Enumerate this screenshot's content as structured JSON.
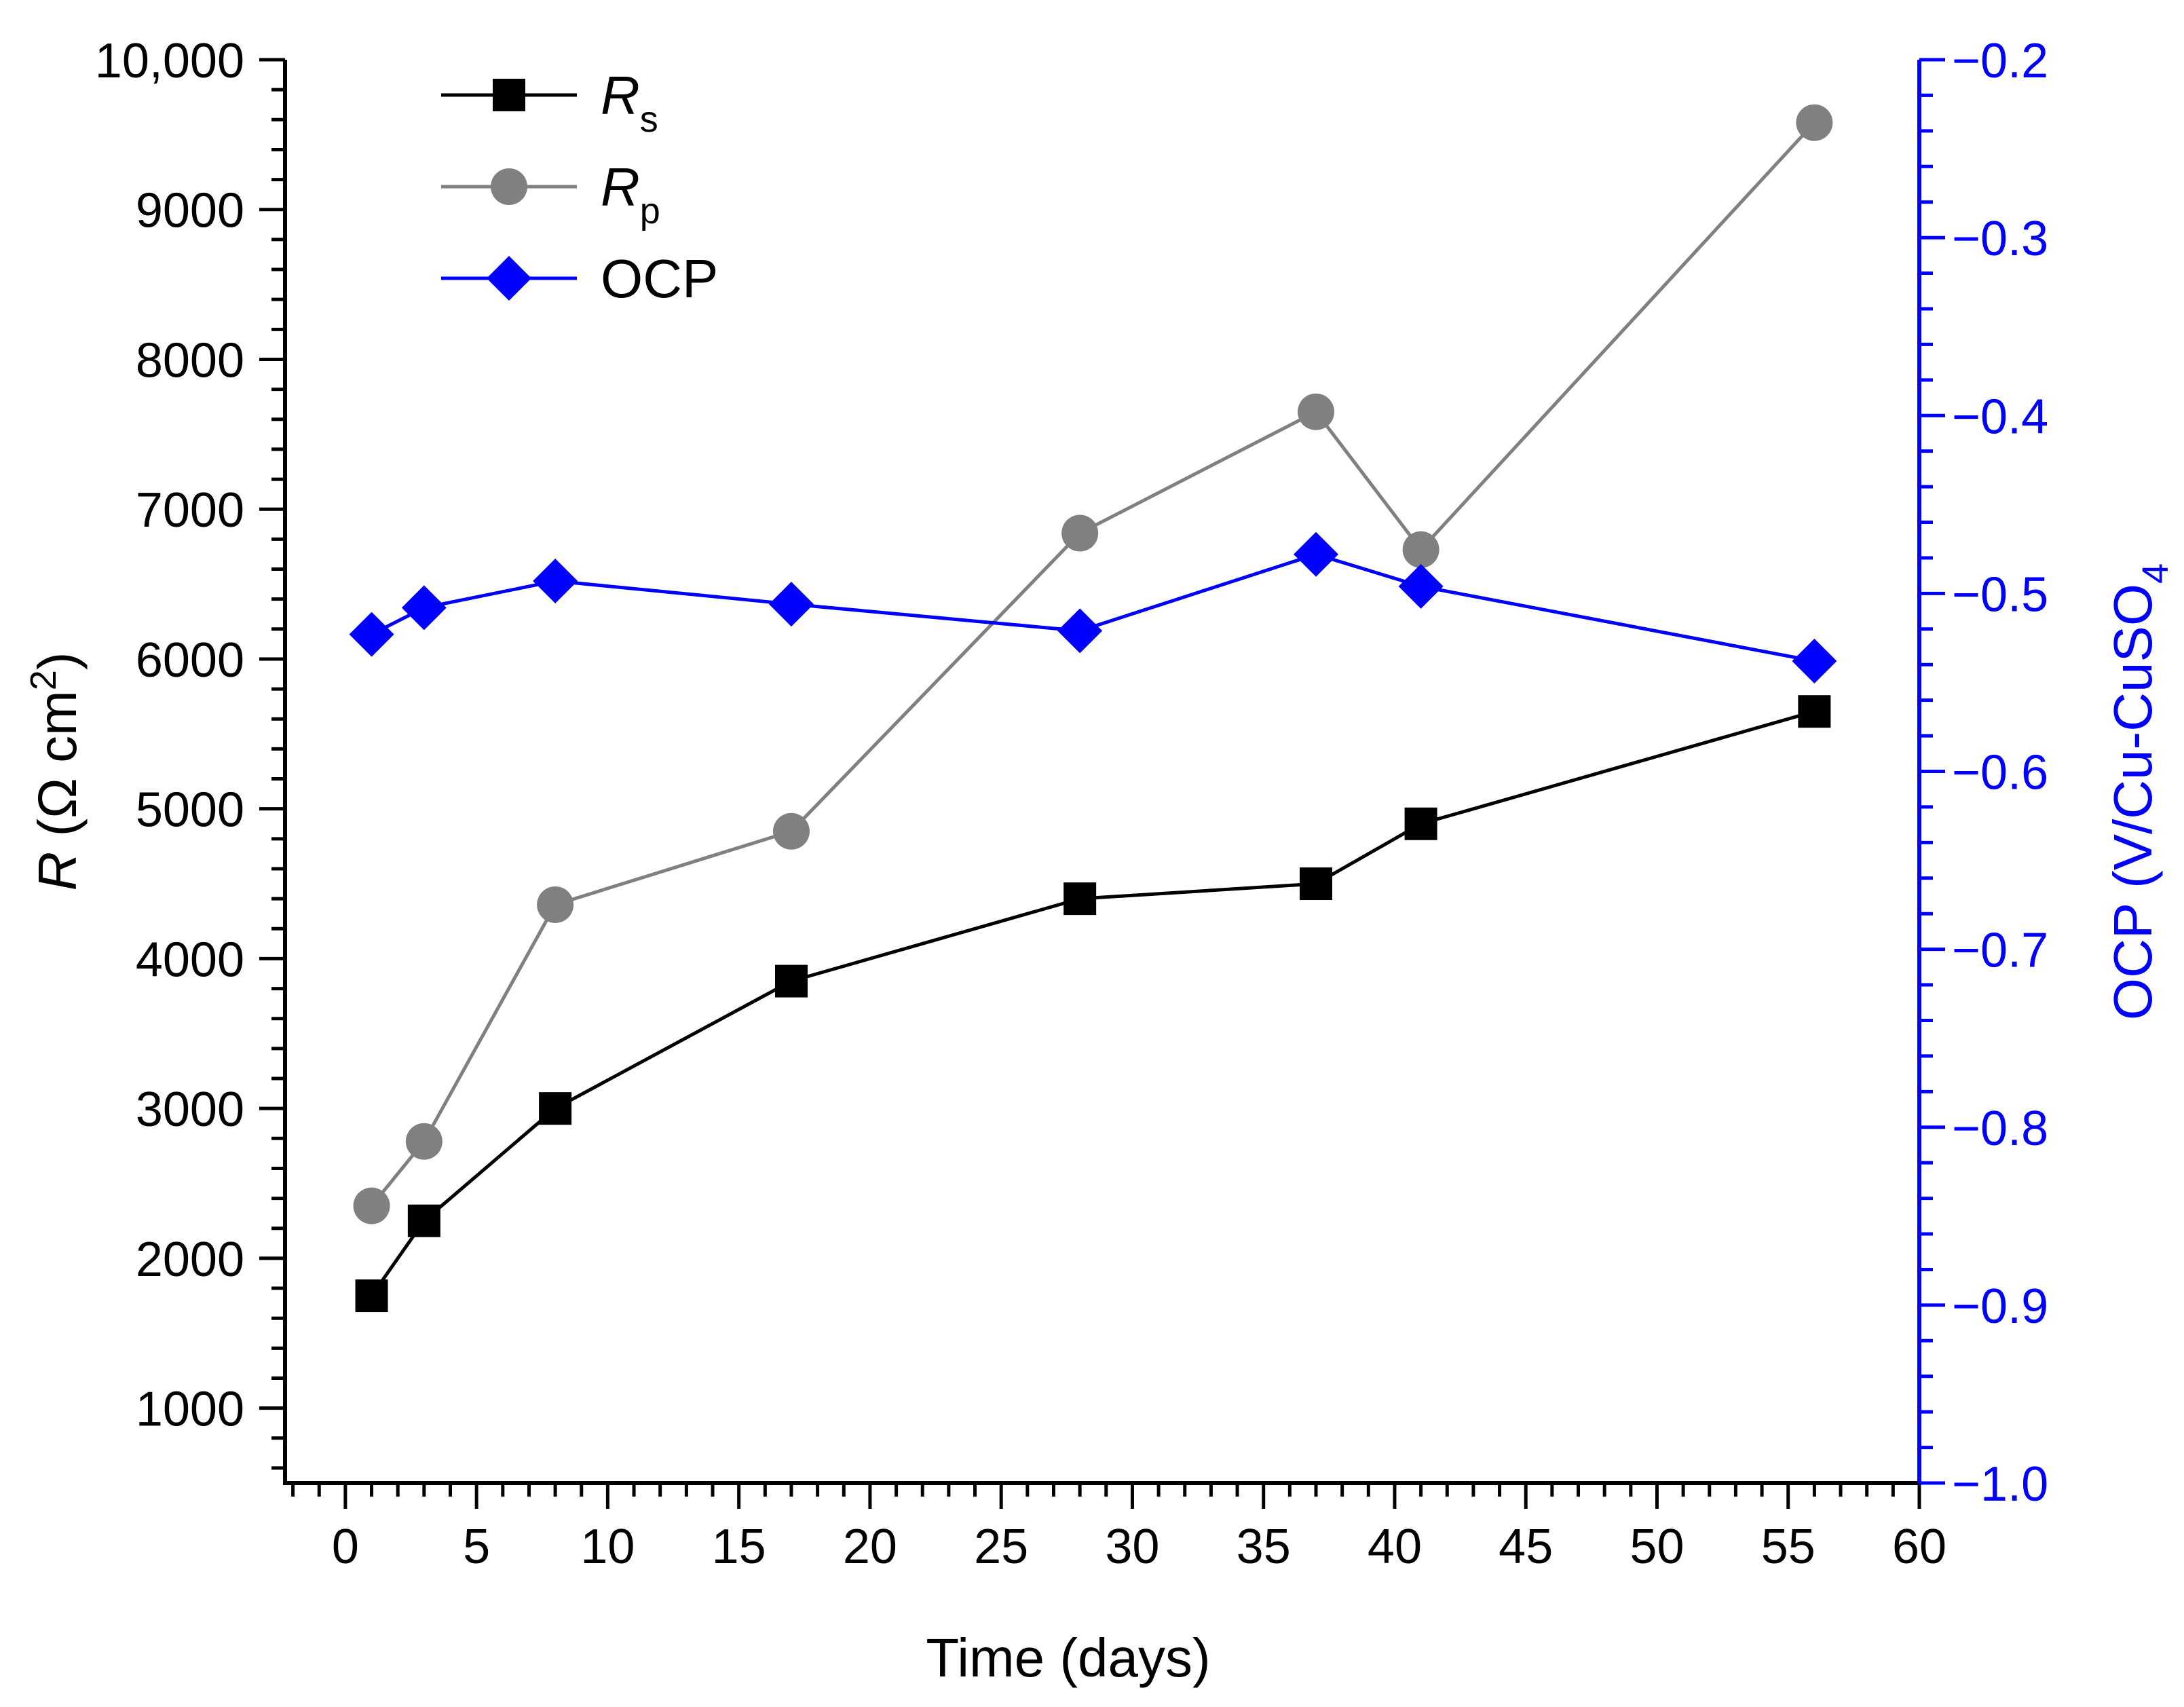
{
  "chart_data": {
    "type": "line",
    "x": [
      1,
      3,
      8,
      17,
      28,
      37,
      41,
      56
    ],
    "xlabel": "Time (days)",
    "xlim": [
      -2.3,
      60
    ],
    "xticks": [
      0,
      5,
      10,
      15,
      20,
      25,
      30,
      35,
      40,
      45,
      50,
      55,
      60
    ],
    "xtick_labels": [
      "0",
      "5",
      "10",
      "15",
      "20",
      "25",
      "30",
      "35",
      "40",
      "45",
      "50",
      "55",
      "60"
    ],
    "ylabel_left": {
      "italic": "R",
      "units_prefix": " (Ω cm",
      "units_sup": "2",
      "units_suffix": ")"
    },
    "ylim_left": [
      500,
      10000
    ],
    "yticks_left": [
      1000,
      2000,
      3000,
      4000,
      5000,
      6000,
      7000,
      8000,
      9000,
      10000
    ],
    "ytick_labels_left": [
      "1000",
      "2000",
      "3000",
      "4000",
      "5000",
      "6000",
      "7000",
      "8000",
      "9000",
      "10,000"
    ],
    "ylabel_right": {
      "prefix": "OCP (V/Cu-CuSO",
      "sub": "4",
      "suffix": ""
    },
    "ylim_right": [
      -1.0,
      -0.2
    ],
    "yticks_right": [
      -1.0,
      -0.9,
      -0.8,
      -0.7,
      -0.6,
      -0.5,
      -0.4,
      -0.3,
      -0.2
    ],
    "ytick_labels_right": [
      "−1.0",
      "−0.9",
      "−0.8",
      "−0.7",
      "−0.6",
      "−0.5",
      "−0.4",
      "−0.3",
      "−0.2"
    ],
    "legend_position": "top-left",
    "series": [
      {
        "name": "Rs",
        "legend_main": "R",
        "legend_sub": "s",
        "axis": "left",
        "marker": "square",
        "color": "#000000",
        "values": [
          1750,
          2250,
          3000,
          3850,
          4400,
          4500,
          4900,
          5650
        ]
      },
      {
        "name": "Rp",
        "legend_main": "R",
        "legend_sub": "p",
        "axis": "left",
        "marker": "circle",
        "color": "#808080",
        "values": [
          2350,
          2780,
          4360,
          4850,
          6840,
          7650,
          6730,
          9580
        ]
      },
      {
        "name": "OCP",
        "legend_main": "OCP",
        "legend_sub": "",
        "axis": "right",
        "marker": "diamond",
        "color": "#0000ff",
        "values": [
          -0.523,
          -0.508,
          -0.493,
          -0.506,
          -0.521,
          -0.478,
          -0.496,
          -0.538
        ]
      }
    ]
  }
}
